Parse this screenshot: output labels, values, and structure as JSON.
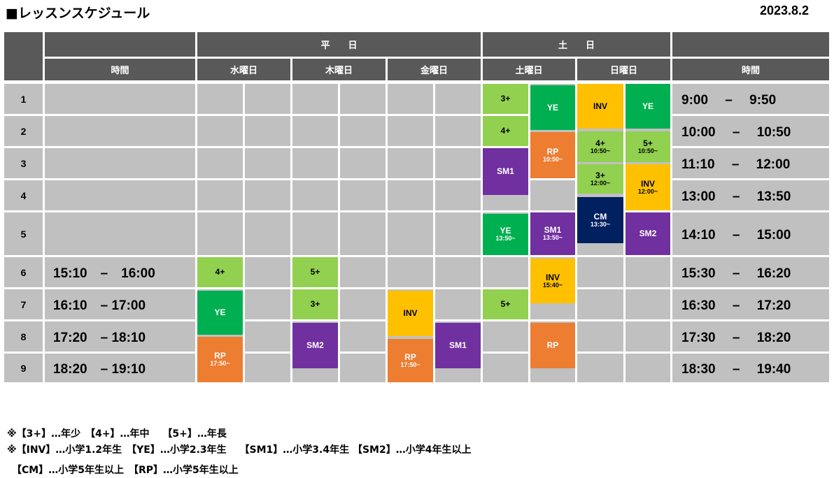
{
  "title": "■レッスンスケジュール",
  "date": "2023.8.2",
  "headers": {
    "weekday": "平　　日",
    "weekend": "土　　日",
    "time_left": "時間",
    "time_right": "時間",
    "wed": "水曜日",
    "thu": "木曜日",
    "fri": "金曜日",
    "sat": "土曜日",
    "sun": "日曜日"
  },
  "rows": [
    "1",
    "2",
    "3",
    "4",
    "5",
    "6",
    "7",
    "8",
    "9"
  ],
  "times_left": {
    "r6": "15:10　–　16:00",
    "r7": "16:10　– 17:00",
    "r8": "17:20　– 18:10",
    "r9": "18:20　– 19:10"
  },
  "times_right": [
    "9:00　 –　 9:50",
    "10:00　 –　 10:50",
    "11:10　 –　 12:00",
    "13:00　 –　 13:50",
    "14:10　 –　 15:00",
    "15:30　 –　 16:20",
    "16:30　 –　 17:20",
    "17:30　 –　 18:20",
    "18:30　 –　 19:40"
  ],
  "lessons": {
    "wed_4p": {
      "name": "4+"
    },
    "wed_ye": {
      "name": "YE"
    },
    "wed_rp": {
      "name": "RP",
      "time": "17:50~"
    },
    "thu_5p": {
      "name": "5+"
    },
    "thu_3p": {
      "name": "3+"
    },
    "thu_sm2": {
      "name": "SM2"
    },
    "fri_inv": {
      "name": "INV"
    },
    "fri_rp": {
      "name": "RP",
      "time": "17:50~"
    },
    "fri_sm1": {
      "name": "SM1"
    },
    "sat_3p": {
      "name": "3+"
    },
    "sat_4p": {
      "name": "4+"
    },
    "sat_sm1": {
      "name": "SM1"
    },
    "sat_ye2": {
      "name": "YE",
      "time": "13:50~"
    },
    "sat_5p": {
      "name": "5+"
    },
    "sat_ye": {
      "name": "YE"
    },
    "sat_rp1": {
      "name": "RP",
      "time": "10:50~"
    },
    "sat_sm1b": {
      "name": "SM1",
      "time": "13:50~"
    },
    "sat_inv": {
      "name": "INV",
      "time": "15:40~"
    },
    "sat_rp2": {
      "name": "RP"
    },
    "sun_inv": {
      "name": "INV"
    },
    "sun_4p": {
      "name": "4+",
      "time": "10:50~"
    },
    "sun_3p": {
      "name": "3+",
      "time": "12:00~"
    },
    "sun_cm": {
      "name": "CM",
      "time": "13:30~"
    },
    "sun_ye": {
      "name": "YE"
    },
    "sun_5p": {
      "name": "5+",
      "time": "10:50~"
    },
    "sun_inv2": {
      "name": "INV",
      "time": "12:00~"
    },
    "sun_sm2": {
      "name": "SM2"
    }
  },
  "legend": {
    "line1": "※【3+】…年少　【4+】…年中　 【5+】…年長",
    "line2": "※【INV】…小学1.2年生　【YE】…小学2.3年生　 【SM1】…小学3.4年生 【SM2】…小学4年生以上",
    "line3": "　【CM】…小学5年生以上　【RP】…小学5年生以上"
  },
  "colors": {
    "header": "#595959",
    "grey": "#c0c0c0",
    "light_green": "#92d050",
    "green": "#00b050",
    "yellow": "#ffc000",
    "orange": "#ed7d31",
    "purple": "#7030a0",
    "navy": "#002060"
  }
}
